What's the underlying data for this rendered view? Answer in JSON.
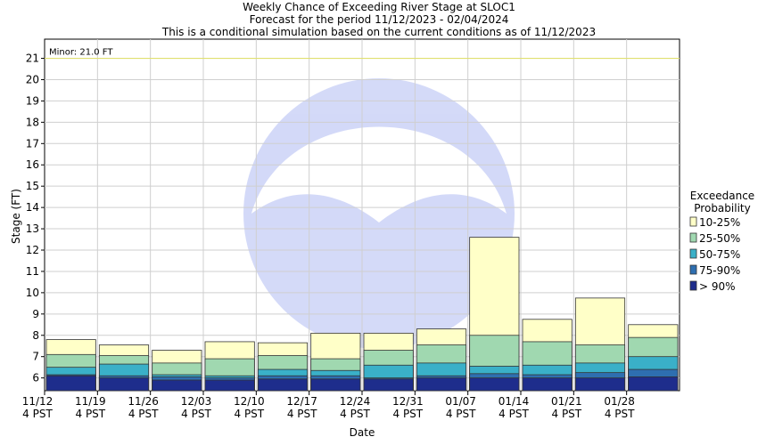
{
  "chart_data": {
    "type": "bar",
    "title": "Weekly Chance of Exceeding River Stage at SLOC1",
    "subtitle": "Forecast for the period 11/12/2023 - 02/04/2024",
    "subtitle2": "This is a conditional simulation based on the current conditions as of 11/12/2023",
    "xlabel": "Date",
    "ylabel": "Stage (FT)",
    "ylim": [
      5.4,
      21.9
    ],
    "yticks": [
      6,
      7,
      8,
      9,
      10,
      11,
      12,
      13,
      14,
      15,
      16,
      17,
      18,
      19,
      20,
      21
    ],
    "tick_labels": [
      [
        "11/12",
        "4 PST"
      ],
      [
        "11/19",
        "4 PST"
      ],
      [
        "11/26",
        "4 PST"
      ],
      [
        "12/03",
        "4 PST"
      ],
      [
        "12/10",
        "4 PST"
      ],
      [
        "12/17",
        "4 PST"
      ],
      [
        "12/24",
        "4 PST"
      ],
      [
        "12/31",
        "4 PST"
      ],
      [
        "01/07",
        "4 PST"
      ],
      [
        "01/14",
        "4 PST"
      ],
      [
        "01/21",
        "4 PST"
      ],
      [
        "01/28",
        "4 PST"
      ]
    ],
    "categories": [
      "11/12",
      "11/19",
      "11/26",
      "12/03",
      "12/10",
      "12/17",
      "12/24",
      "12/31",
      "01/07",
      "01/14",
      "01/21",
      "01/28"
    ],
    "reference_line": {
      "label": "Minor: 21.0 FT",
      "value": 21.0,
      "color": "#e0e070"
    },
    "legend": {
      "title": [
        "Exceedance",
        "Probability"
      ],
      "placement": "right"
    },
    "series": [
      {
        "name": "> 90%",
        "color": "#1e2d8c",
        "values": [
          6.1,
          6.0,
          5.9,
          5.9,
          5.95,
          5.95,
          5.95,
          6.0,
          6.0,
          6.0,
          6.0,
          6.05
        ]
      },
      {
        "name": "75-90%",
        "color": "#2e6fb0",
        "values": [
          6.15,
          6.1,
          6.05,
          6.0,
          6.1,
          6.1,
          6.0,
          6.1,
          6.2,
          6.15,
          6.25,
          6.4
        ]
      },
      {
        "name": "50-75%",
        "color": "#3ab0c8",
        "values": [
          6.5,
          6.65,
          6.15,
          6.1,
          6.4,
          6.35,
          6.6,
          6.7,
          6.55,
          6.6,
          6.7,
          7.0
        ]
      },
      {
        "name": "25-50%",
        "color": "#a0d8b0",
        "values": [
          7.1,
          7.05,
          6.7,
          6.9,
          7.05,
          6.9,
          7.3,
          7.55,
          8.0,
          7.7,
          7.55,
          7.9
        ]
      },
      {
        "name": "10-25%",
        "color": "#ffffc8",
        "values": [
          7.8,
          7.55,
          7.3,
          7.7,
          7.65,
          8.1,
          8.1,
          8.3,
          12.6,
          8.75,
          9.75,
          8.5
        ]
      }
    ]
  }
}
